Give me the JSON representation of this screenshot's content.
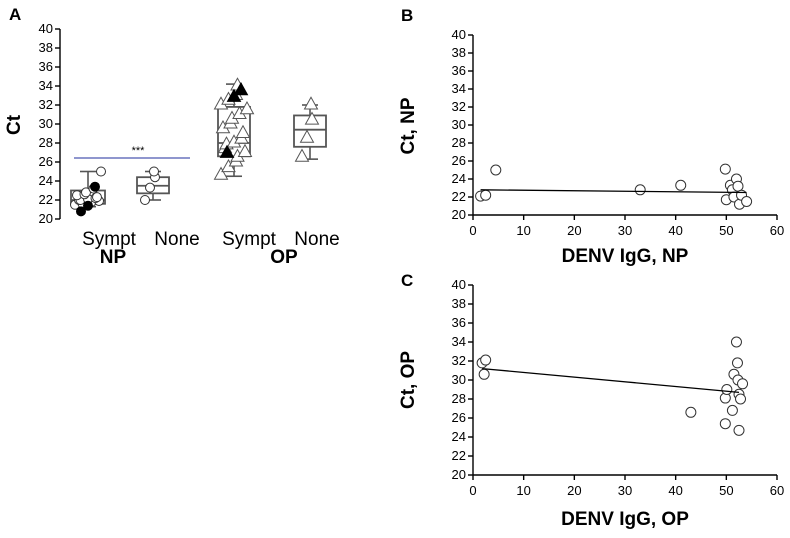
{
  "chart_data": [
    {
      "panel": "A",
      "type": "box",
      "ylabel": "Ct",
      "ylim": [
        20,
        40
      ],
      "yticks": [
        20,
        22,
        24,
        26,
        28,
        30,
        32,
        34,
        36,
        38,
        40
      ],
      "categories": [
        "Sympt",
        "None",
        "Sympt",
        "None"
      ],
      "groups": [
        "NP",
        "OP"
      ],
      "significance": {
        "label": "***",
        "between": [
          "NP Sympt",
          "NP None"
        ],
        "color": "#1f2e9e"
      },
      "boxes": [
        {
          "group": "NP",
          "category": "Sympt",
          "whisker_low": 21.3,
          "q1": 21.6,
          "median": 22.0,
          "q3": 23.0,
          "whisker_high": 25.0,
          "points_open": [
            21.5,
            21.6,
            21.7,
            21.8,
            21.9,
            22.0,
            22.0,
            22.1,
            22.2,
            22.3,
            22.5,
            22.6,
            22.8,
            23.2,
            25.0
          ],
          "points_filled": [
            20.8,
            21.4,
            23.4
          ]
        },
        {
          "group": "NP",
          "category": "None",
          "whisker_low": 22.0,
          "q1": 22.7,
          "median": 23.5,
          "q3": 24.4,
          "whisker_high": 25.0,
          "points_open": [
            22.0,
            23.3,
            24.4,
            25.0
          ],
          "points_filled": []
        },
        {
          "group": "OP",
          "category": "Sympt",
          "whisker_low": 24.5,
          "q1": 26.6,
          "median": 28.0,
          "q3": 31.8,
          "whisker_high": 34.2,
          "points_open": [
            24.6,
            25.4,
            26.0,
            26.5,
            27.0,
            27.4,
            27.8,
            28.0,
            28.4,
            29.0,
            29.5,
            30.0,
            30.5,
            31.0,
            31.5,
            32.0,
            32.5,
            33.0,
            34.0
          ],
          "points_filled": [
            26.9,
            32.8,
            33.5
          ]
        },
        {
          "group": "OP",
          "category": "None",
          "whisker_low": 26.3,
          "q1": 27.6,
          "median": 29.4,
          "q3": 30.9,
          "whisker_high": 32.0,
          "points_open": [
            26.5,
            28.5,
            30.4,
            32.0
          ],
          "points_filled": []
        }
      ]
    },
    {
      "panel": "B",
      "type": "scatter",
      "xlabel": "DENV IgG, NP",
      "ylabel": "Ct, NP",
      "xlim": [
        0,
        60
      ],
      "ylim": [
        20,
        40
      ],
      "xticks": [
        0,
        10,
        20,
        30,
        40,
        50,
        60
      ],
      "yticks": [
        20,
        22,
        24,
        26,
        28,
        30,
        32,
        34,
        36,
        38,
        40
      ],
      "points": [
        [
          1.5,
          22.1
        ],
        [
          2.5,
          22.2
        ],
        [
          4.5,
          25.0
        ],
        [
          33,
          22.8
        ],
        [
          41,
          23.3
        ],
        [
          49.8,
          25.1
        ],
        [
          50,
          21.7
        ],
        [
          50.8,
          23.3
        ],
        [
          51.2,
          22.8
        ],
        [
          51.5,
          22.0
        ],
        [
          52,
          24.0
        ],
        [
          52.3,
          23.2
        ],
        [
          52.6,
          21.2
        ],
        [
          53,
          22.2
        ],
        [
          54,
          21.5
        ]
      ],
      "fit_line": [
        [
          1.5,
          22.8
        ],
        [
          54,
          22.5
        ]
      ]
    },
    {
      "panel": "C",
      "type": "scatter",
      "xlabel": "DENV IgG, OP",
      "ylabel": "Ct, OP",
      "xlim": [
        0,
        60
      ],
      "ylim": [
        20,
        40
      ],
      "xticks": [
        0,
        10,
        20,
        30,
        40,
        50,
        60
      ],
      "yticks": [
        20,
        22,
        24,
        26,
        28,
        30,
        32,
        34,
        36,
        38,
        40
      ],
      "points": [
        [
          1.8,
          31.8
        ],
        [
          2.5,
          32.1
        ],
        [
          2.2,
          30.6
        ],
        [
          43,
          26.6
        ],
        [
          49.8,
          25.4
        ],
        [
          49.8,
          28.1
        ],
        [
          50.1,
          29.0
        ],
        [
          51.2,
          26.8
        ],
        [
          51.5,
          30.6
        ],
        [
          52,
          34.0
        ],
        [
          52.2,
          31.8
        ],
        [
          52.3,
          30.0
        ],
        [
          52.5,
          28.5
        ],
        [
          52.8,
          28.0
        ],
        [
          53.2,
          29.6
        ],
        [
          52.5,
          24.7
        ]
      ],
      "fit_line": [
        [
          1.8,
          31.2
        ],
        [
          52.5,
          28.7
        ]
      ]
    }
  ]
}
